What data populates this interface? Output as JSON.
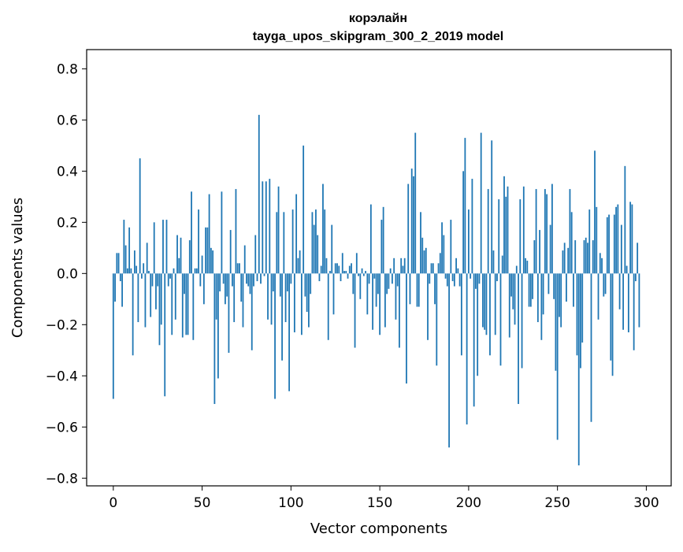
{
  "chart_data": {
    "type": "bar",
    "title": "корэлайн",
    "subtitle": "tayga_upos_skipgram_300_2_2019 model",
    "xlabel": "Vector components",
    "ylabel": "Components values",
    "xlim": [
      -15,
      314
    ],
    "ylim": [
      -0.83,
      0.875
    ],
    "xticks": [
      0,
      50,
      100,
      150,
      200,
      250,
      300
    ],
    "xtick_labels": [
      "0",
      "50",
      "100",
      "150",
      "200",
      "250",
      "300"
    ],
    "yticks": [
      0.8,
      0.6,
      0.4,
      0.2,
      0.0,
      -0.2,
      -0.4,
      -0.6,
      -0.8
    ],
    "ytick_labels": [
      "0.8",
      "0.6",
      "0.4",
      "0.2",
      "0.0",
      "−0.2",
      "−0.4",
      "−0.6",
      "−0.8"
    ],
    "bar_color": "#1f77b4",
    "grid": false,
    "values": [
      -0.49,
      -0.11,
      0.08,
      0.08,
      -0.03,
      -0.13,
      0.21,
      0.11,
      0.02,
      0.18,
      0.02,
      -0.32,
      0.09,
      0.03,
      -0.19,
      0.45,
      -0.02,
      0.04,
      -0.21,
      0.12,
      0.01,
      -0.17,
      -0.05,
      0.2,
      -0.14,
      -0.05,
      -0.28,
      -0.2,
      0.21,
      -0.48,
      0.21,
      -0.05,
      -0.02,
      -0.24,
      0.02,
      -0.18,
      0.15,
      0.06,
      0.14,
      -0.25,
      -0.08,
      -0.24,
      -0.24,
      0.13,
      0.32,
      -0.26,
      0.02,
      0.02,
      0.25,
      -0.05,
      0.07,
      -0.12,
      0.18,
      0.18,
      0.31,
      0.1,
      0.09,
      -0.51,
      -0.18,
      -0.41,
      -0.07,
      0.32,
      -0.04,
      -0.12,
      -0.09,
      -0.31,
      0.17,
      -0.05,
      -0.19,
      0.33,
      0.04,
      0.04,
      -0.11,
      -0.21,
      0.11,
      -0.04,
      -0.05,
      -0.08,
      -0.3,
      -0.05,
      0.15,
      -0.03,
      0.62,
      -0.04,
      0.36,
      -0.01,
      0.36,
      -0.18,
      0.37,
      -0.2,
      -0.07,
      -0.49,
      0.24,
      0.34,
      -0.09,
      -0.34,
      0.24,
      -0.19,
      -0.07,
      -0.46,
      -0.04,
      0.25,
      -0.23,
      0.31,
      0.06,
      0.09,
      -0.24,
      0.5,
      -0.09,
      -0.15,
      -0.21,
      -0.08,
      0.24,
      0.19,
      0.25,
      0.15,
      -0.03,
      0.03,
      0.35,
      0.25,
      0.06,
      -0.26,
      0.01,
      0.19,
      -0.16,
      0.04,
      0.04,
      0.03,
      -0.03,
      0.08,
      0.01,
      0.01,
      -0.02,
      0.03,
      0.04,
      -0.08,
      -0.29,
      0.08,
      -0.01,
      -0.1,
      0.02,
      -0.01,
      0.01,
      -0.16,
      -0.04,
      0.27,
      -0.22,
      -0.02,
      -0.13,
      -0.08,
      -0.24,
      0.21,
      0.26,
      -0.21,
      -0.08,
      -0.06,
      0.02,
      -0.04,
      0.06,
      -0.18,
      -0.05,
      -0.29,
      0.06,
      0.03,
      0.06,
      -0.43,
      0.35,
      -0.12,
      0.41,
      0.38,
      0.55,
      -0.13,
      -0.13,
      0.24,
      0.14,
      0.09,
      0.1,
      -0.26,
      -0.04,
      0.04,
      0.04,
      -0.12,
      -0.36,
      0.04,
      0.08,
      0.2,
      0.15,
      -0.02,
      -0.05,
      -0.68,
      0.21,
      -0.03,
      -0.05,
      0.06,
      0.02,
      -0.05,
      -0.32,
      0.4,
      0.53,
      -0.59,
      0.25,
      -0.02,
      0.37,
      -0.52,
      -0.06,
      -0.4,
      -0.04,
      0.55,
      -0.21,
      -0.22,
      -0.24,
      0.33,
      -0.32,
      0.52,
      0.09,
      -0.24,
      -0.03,
      0.29,
      -0.36,
      0.07,
      0.38,
      0.3,
      0.34,
      -0.25,
      -0.09,
      -0.14,
      -0.2,
      0.03,
      -0.51,
      0.29,
      -0.37,
      0.34,
      0.06,
      0.05,
      -0.13,
      -0.13,
      -0.1,
      0.13,
      0.33,
      -0.19,
      0.17,
      -0.26,
      -0.16,
      0.33,
      0.31,
      -0.08,
      0.19,
      0.35,
      -0.1,
      -0.38,
      -0.65,
      -0.17,
      -0.21,
      0.09,
      0.12,
      -0.11,
      0.1,
      0.33,
      0.24,
      -0.13,
      0.13,
      -0.32,
      -0.75,
      -0.37,
      -0.27,
      0.13,
      0.14,
      0.12,
      0.25,
      -0.58,
      0.13,
      0.48,
      0.26,
      -0.18,
      0.08,
      0.06,
      -0.09,
      -0.08,
      0.22,
      0.23,
      -0.34,
      -0.4,
      0.23,
      0.26,
      0.27,
      -0.14,
      0.19,
      -0.22,
      0.42,
      0.03,
      -0.23,
      0.28,
      0.27,
      -0.3,
      -0.03,
      0.12,
      -0.21
    ]
  }
}
